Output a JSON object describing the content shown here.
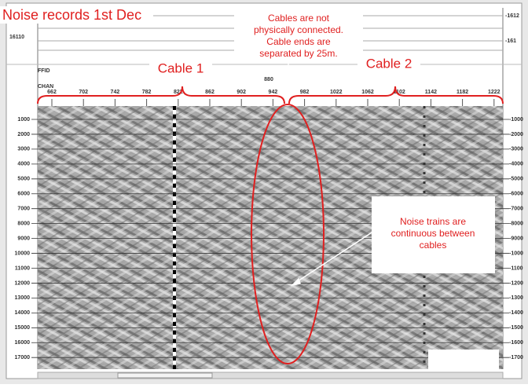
{
  "title": "Noise records 1st Dec",
  "header": {
    "ffid_value": "16110",
    "ffid_label": "FFID",
    "chan_label": "CHAN",
    "center_label": "880",
    "right_top": [
      "-1612",
      "-161"
    ]
  },
  "channels": [
    "662",
    "702",
    "742",
    "782",
    "822",
    "862",
    "902",
    "942",
    "982",
    "1022",
    "1062",
    "1102",
    "1142",
    "1182",
    "1222"
  ],
  "left_axis": [
    "1000",
    "2000",
    "3000",
    "4000",
    "5000",
    "6000",
    "7000",
    "8000",
    "9000",
    "10000",
    "11000",
    "12000",
    "13000",
    "14000",
    "15000",
    "16000",
    "17000"
  ],
  "right_axis": [
    "-1000",
    "-2000",
    "-3000",
    "-4000",
    "-5000",
    "-6000",
    "-7000",
    "-8000",
    "-9000",
    "-1000",
    "-1100",
    "-1200",
    "-1300",
    "-1400",
    "-1500",
    "-1600",
    "-1700"
  ],
  "annotations": {
    "cable1": "Cable 1",
    "cable2": "Cable 2",
    "cables_note": [
      "Cables are not",
      "physically connected.",
      "Cable ends are",
      "separated by 25m."
    ],
    "noise_note": [
      "Noise trains are",
      "continuous between",
      "cables"
    ]
  }
}
